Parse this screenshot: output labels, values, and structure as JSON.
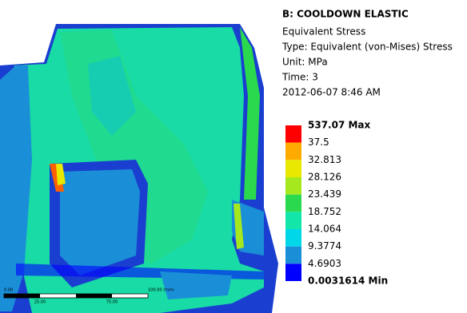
{
  "header": {
    "title": "B: COOLDOWN ELASTIC",
    "lines": [
      "Equivalent Stress",
      "Type: Equivalent (von-Mises) Stress",
      "Unit: MPa",
      "Time: 3",
      "2012-06-07 8:46 AM"
    ]
  },
  "legend": {
    "labels": [
      "537.07 Max",
      "37.5",
      "32.813",
      "28.126",
      "23.439",
      "18.752",
      "14.064",
      "9.3774",
      "4.6903",
      "0.0031614 Min"
    ],
    "colors": [
      "#ff0000",
      "#ffaa00",
      "#e8e800",
      "#a6e81e",
      "#2bd94f",
      "#12e6a8",
      "#00d7e8",
      "#1a8fd8",
      "#0000ff"
    ]
  },
  "scale_bar": {
    "labels": [
      "0.00",
      "100.00 (mm)",
      "25.00",
      "75.00"
    ]
  }
}
